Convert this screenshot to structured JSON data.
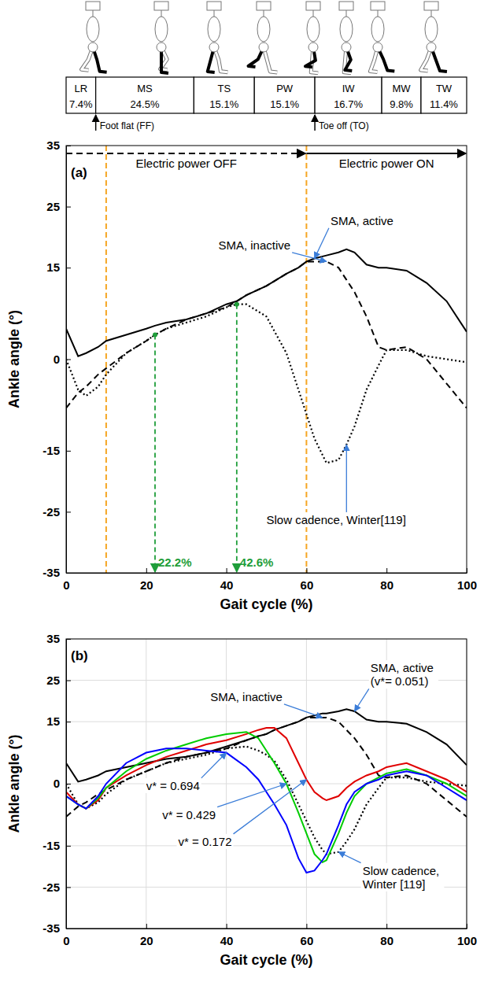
{
  "phases": [
    {
      "name": "LR",
      "value": 7.4,
      "label": "7.4%"
    },
    {
      "name": "MS",
      "value": 24.5,
      "label": "24.5%"
    },
    {
      "name": "TS",
      "value": 15.1,
      "label": "15.1%"
    },
    {
      "name": "PW",
      "value": 15.1,
      "label": "15.1%"
    },
    {
      "name": "IW",
      "value": 16.7,
      "label": "16.7%"
    },
    {
      "name": "MW",
      "value": 9.8,
      "label": "9.8%"
    },
    {
      "name": "TW",
      "value": 11.4,
      "label": "11.4%"
    }
  ],
  "events": [
    {
      "text": "Foot flat (FF)",
      "x": 7.4
    },
    {
      "text": "Toe off (TO)",
      "x": 62.1
    }
  ],
  "chart_data": [
    {
      "type": "line",
      "panel_label": "(a)",
      "x_label": "Gait cycle (%)",
      "y_label": "Ankle angle (°)",
      "x": [
        0,
        3,
        5,
        8,
        10,
        15,
        20,
        22.2,
        25,
        30,
        35,
        40,
        42.6,
        45,
        50,
        55,
        58,
        60,
        62,
        65,
        68,
        70,
        72,
        75,
        78,
        80,
        85,
        90,
        95,
        100
      ],
      "xlim": [
        0,
        100
      ],
      "xticks": [
        0,
        20,
        40,
        60,
        80,
        100
      ],
      "ylim": [
        -35,
        35
      ],
      "yticks": [
        -35,
        -25,
        -15,
        0,
        15,
        25,
        35
      ],
      "grid": false,
      "series": [
        {
          "name": "SMA, active",
          "color": "#000000",
          "line_style": "solid",
          "values": [
            5,
            0.5,
            1,
            2,
            3,
            4,
            5,
            5.5,
            6,
            6.5,
            7.5,
            9,
            9.5,
            10.5,
            12,
            14,
            15,
            16,
            16.5,
            17,
            17.5,
            18,
            17.5,
            15.5,
            15,
            15,
            14.5,
            12.5,
            9.5,
            4.5
          ]
        },
        {
          "name": "SMA, inactive",
          "color": "#000000",
          "line_style": "dashed",
          "values": [
            -8,
            -5.5,
            -4.5,
            -2.5,
            -1.5,
            1,
            3,
            4,
            5,
            6.5,
            7.5,
            8.5,
            9.5,
            10.5,
            12,
            14,
            15,
            16,
            16,
            16,
            15,
            13,
            11,
            7,
            2,
            1.5,
            2,
            0,
            -4,
            -8
          ]
        },
        {
          "name": "Slow cadence, Winter[119]",
          "color": "#000000",
          "line_style": "dotted",
          "values": [
            0,
            -5,
            -6,
            -4.5,
            -2.5,
            1,
            3,
            4,
            5,
            6,
            7,
            8.5,
            9,
            9,
            7,
            1,
            -5,
            -9,
            -13,
            -17,
            -16.5,
            -14,
            -11,
            -5,
            -1,
            1.5,
            1.5,
            0.5,
            0,
            -0.5
          ]
        }
      ],
      "vlines": [
        10,
        60
      ],
      "power": [
        {
          "text": "Electric power OFF",
          "x0": 0,
          "x1": 60,
          "line_style": "dashed"
        },
        {
          "text": "Electric power ON",
          "x0": 60,
          "x1": 100,
          "line_style": "solid"
        }
      ],
      "markers": [
        {
          "value": 22.2,
          "label": "22.2%",
          "y": 4
        },
        {
          "value": 42.6,
          "label": "42.6%",
          "y": 9
        }
      ]
    },
    {
      "type": "line",
      "panel_label": "(b)",
      "x_label": "Gait cycle (%)",
      "y_label": "Ankle angle (°)",
      "x": [
        0,
        3,
        5,
        8,
        10,
        15,
        20,
        25,
        30,
        35,
        40,
        45,
        48,
        50,
        52,
        55,
        58,
        60,
        62,
        64,
        65,
        68,
        70,
        72,
        75,
        78,
        80,
        85,
        90,
        95,
        100
      ],
      "xlim": [
        0,
        100
      ],
      "xticks": [
        0,
        20,
        40,
        60,
        80,
        100
      ],
      "ylim": [
        -35,
        35
      ],
      "yticks": [
        -35,
        -25,
        -15,
        0,
        15,
        25,
        35
      ],
      "grid": true,
      "series": [
        {
          "name": "SMA, active (v*= 0.051)",
          "color": "#000000",
          "line_style": "solid",
          "values": [
            5,
            0.5,
            1,
            2,
            3,
            4,
            5,
            6,
            6.5,
            7.5,
            9,
            10.5,
            11.5,
            12,
            13,
            14,
            15,
            16,
            16.5,
            17,
            17,
            17.5,
            18,
            17.5,
            15.5,
            15,
            15,
            14.5,
            12.5,
            9.5,
            4.5
          ]
        },
        {
          "name": "SMA, inactive",
          "color": "#000000",
          "line_style": "dashed",
          "values": [
            -8,
            -5.5,
            -4.5,
            -2.5,
            -1.5,
            1,
            3,
            5,
            6.5,
            7.5,
            8.5,
            10.5,
            11.5,
            12,
            13,
            14,
            15,
            16,
            16,
            16,
            16,
            15,
            13,
            11,
            7,
            2,
            1.5,
            2,
            0,
            -4,
            -8
          ]
        },
        {
          "name": "Slow cadence, Winter [119]",
          "color": "#000000",
          "line_style": "dotted",
          "values": [
            0,
            -5,
            -6,
            -4.5,
            -2.5,
            1,
            3,
            5,
            6,
            7,
            8.5,
            9,
            8,
            7,
            5.5,
            1,
            -5,
            -9,
            -13,
            -16,
            -17,
            -16.5,
            -14,
            -11,
            -5,
            -1,
            1.5,
            1.5,
            0.5,
            0,
            -0.5
          ]
        },
        {
          "name": "v* = 0.172",
          "color": "#e00000",
          "line_style": "solid",
          "values": [
            -2,
            -5,
            -6,
            -4,
            -1,
            2,
            4.5,
            6.5,
            8,
            9.5,
            10.5,
            12,
            13,
            13.5,
            13.5,
            11,
            5,
            1,
            -2,
            -3.5,
            -4,
            -3,
            -1,
            0.5,
            2,
            3,
            4,
            5,
            3,
            1,
            -2
          ]
        },
        {
          "name": "v* = 0.429",
          "color": "#00cc00",
          "line_style": "solid",
          "values": [
            -3,
            -5,
            -6,
            -3.5,
            -1,
            3,
            6,
            8,
            9.5,
            11,
            12,
            12.5,
            11,
            8,
            5,
            0,
            -7,
            -12,
            -17,
            -19,
            -18.5,
            -12,
            -7,
            -3,
            0,
            1.5,
            2.5,
            3.5,
            2,
            0,
            -3
          ]
        },
        {
          "name": "v* = 0.694",
          "color": "#0000ff",
          "line_style": "solid",
          "values": [
            -3,
            -5,
            -6,
            -3,
            0,
            5,
            7.5,
            8.5,
            8.5,
            8,
            7.5,
            4,
            1,
            -2,
            -5,
            -10,
            -18,
            -21.5,
            -21,
            -18.5,
            -17,
            -10,
            -5,
            -2,
            0,
            1,
            2,
            3,
            2,
            -1,
            -4
          ]
        }
      ]
    }
  ]
}
